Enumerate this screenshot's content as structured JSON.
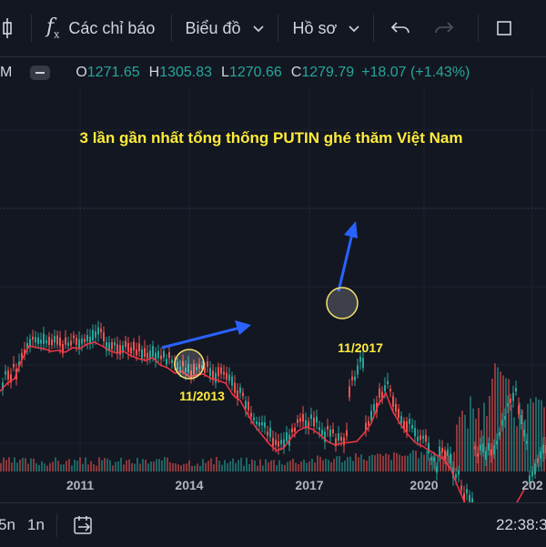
{
  "toolbar": {
    "indicators_label": "Các chỉ báo",
    "chart_type_label": "Biểu đồ",
    "profile_label": "Hồ sơ"
  },
  "legend": {
    "left_cut": "M",
    "o_key": "O",
    "o_val": "1271.65",
    "h_key": "H",
    "h_val": "1305.83",
    "l_key": "L",
    "l_val": "1270.66",
    "c_key": "C",
    "c_val": "1279.79",
    "change": "+18.07 (+1.43%)"
  },
  "chart": {
    "annotation_title": "3 lần gần nhất tổng thống PUTIN ghé thăm Việt Nam",
    "marker_2013": "11/2013",
    "marker_2017": "11/2017",
    "x_ticks": [
      "2011",
      "2014",
      "2017",
      "2020",
      "202"
    ]
  },
  "chart_data": {
    "type": "line",
    "series": [
      {
        "values": [
          430,
          421,
          416,
          395,
          380,
          382,
          383,
          386,
          385,
          387,
          382,
          383,
          378,
          376,
          380,
          385,
          388,
          386,
          391,
          394,
          396,
          393,
          401,
          404,
          410,
          408,
          414,
          412,
          411,
          416,
          418,
          421,
          434,
          440,
          455,
          468,
          478,
          488,
          495,
          492,
          481,
          473,
          469,
          472,
          478,
          485,
          489,
          487,
          486,
          485,
          476,
          465,
          444,
          432,
          453,
          466,
          477,
          486,
          490,
          495,
          500,
          505,
          517,
          537,
          555,
          568,
          576,
          586,
          587,
          580,
          566,
          552,
          538
        ]
      }
    ],
    "legend_position": "none",
    "grid": true
  },
  "colors": {
    "background": "#131722",
    "up": "#26a69a",
    "down": "#ef5350",
    "ma_line": "#f23645",
    "annotation_text": "#ffeb3b",
    "arrow": "#2962ff",
    "circle": "#f7e26b"
  },
  "footer": {
    "range_5y_cut": "5n",
    "range_1m": "1n",
    "time": "22:38:3"
  }
}
